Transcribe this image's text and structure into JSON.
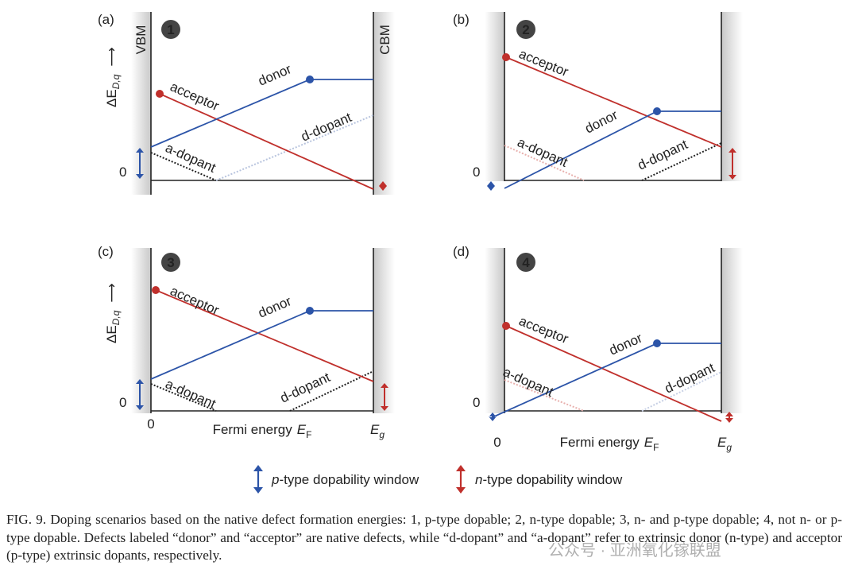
{
  "panels": [
    {
      "label": "(a)",
      "number": "1",
      "vbm": "VBM",
      "cbm": "CBM",
      "y_label": {
        "symbol": "ΔE",
        "subscript": "D,q",
        "arrow": "⟶"
      },
      "zero": "0",
      "acceptor": "acceptor",
      "donor": "donor",
      "a_dopant": "a-dopant",
      "d_dopant": "d-dopant"
    },
    {
      "label": "(b)",
      "number": "2",
      "zero": "0",
      "acceptor": "acceptor",
      "donor": "donor",
      "a_dopant": "a-dopant",
      "d_dopant": "d-dopant"
    },
    {
      "label": "(c)",
      "number": "3",
      "y_label": {
        "symbol": "ΔE",
        "subscript": "D,q",
        "arrow": "⟶"
      },
      "zero": "0",
      "acceptor": "acceptor",
      "donor": "donor",
      "a_dopant": "a-dopant",
      "d_dopant": "d-dopant",
      "x_zero": "0",
      "x_label": {
        "text": "Fermi energy",
        "symbol": "E",
        "subscript": "F"
      },
      "x_end": {
        "symbol": "E",
        "subscript": "g"
      }
    },
    {
      "label": "(d)",
      "number": "4",
      "zero": "0",
      "acceptor": "acceptor",
      "donor": "donor",
      "a_dopant": "a-dopant",
      "d_dopant": "d-dopant",
      "x_zero": "0",
      "x_label": {
        "text": "Fermi energy",
        "symbol": "E",
        "subscript": "F"
      },
      "x_end": {
        "symbol": "E",
        "subscript": "g"
      }
    }
  ],
  "legend": [
    {
      "italic": "p",
      "text": "-type dopability window"
    },
    {
      "italic": "n",
      "text": "-type dopability window"
    }
  ],
  "caption": "FIG. 9.   Doping scenarios based on the native defect formation energies: 1, p-type dopable; 2, n-type dopable; 3, n- and p-type dopable; 4, not n- or p-type dopable. Defects labeled “donor” and “acceptor” are native defects, while “d-dopant” and “a-dopant” refer to extrinsic donor (n-type) and acceptor (p-type) extrinsic dopants, respectively.",
  "watermark": "公众号 · 亚洲氧化镓联盟"
}
